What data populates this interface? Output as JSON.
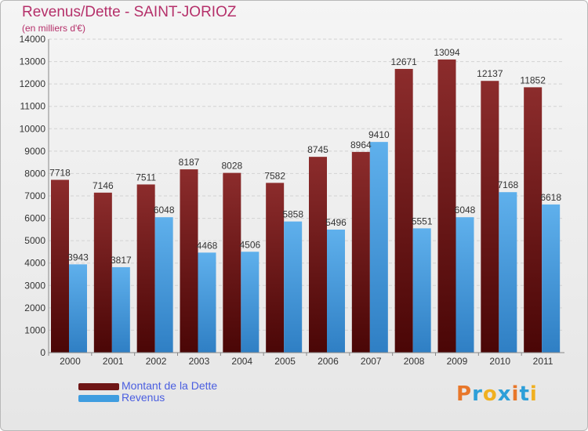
{
  "title": "Revenus/Dette - SAINT-JORIOZ",
  "subtitle": "(en milliers d'€)",
  "colors": {
    "dette": "#6e1515",
    "revenus": "#3f9de0",
    "title": "#b5306a",
    "legend_text": "#4a5ee0"
  },
  "chart_data": {
    "type": "bar",
    "title": "Revenus/Dette - SAINT-JORIOZ",
    "subtitle": "(en milliers d'€)",
    "categories": [
      "2000",
      "2001",
      "2002",
      "2003",
      "2004",
      "2005",
      "2006",
      "2007",
      "2008",
      "2009",
      "2010",
      "2011"
    ],
    "series": [
      {
        "name": "Montant de la Dette",
        "values": [
          7718,
          7146,
          7511,
          8187,
          8028,
          7582,
          8745,
          8964,
          12671,
          13094,
          12137,
          11852
        ]
      },
      {
        "name": "Revenus",
        "values": [
          3943,
          3817,
          6048,
          4468,
          4506,
          5858,
          5496,
          9410,
          5551,
          6048,
          7168,
          6618
        ]
      }
    ],
    "ylim": [
      0,
      14000
    ],
    "yticks": [
      "0",
      "1000",
      "2000",
      "3000",
      "4000",
      "5000",
      "6000",
      "7000",
      "8000",
      "9000",
      "10000",
      "11000",
      "12000",
      "13000",
      "14000"
    ],
    "grid": true,
    "legend": "bottom-left"
  },
  "legend": {
    "dette_label": "Montant de la Dette",
    "revenus_label": "Revenus"
  },
  "logo": {
    "text": "Proxiti"
  }
}
